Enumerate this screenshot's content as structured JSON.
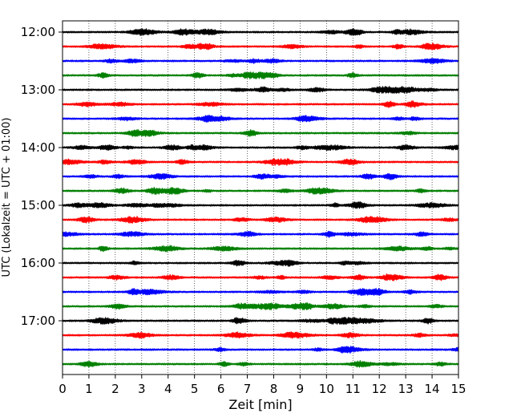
{
  "chart_data": {
    "type": "line",
    "title": "",
    "xlabel": "Zeit  [min]",
    "ylabel": "UTC (Lokalzeit = UTC + 01:00)",
    "xlim": [
      0,
      15
    ],
    "x_ticks": [
      "0",
      "1",
      "2",
      "3",
      "4",
      "5",
      "6",
      "7",
      "8",
      "9",
      "10",
      "11",
      "12",
      "13",
      "14",
      "15"
    ],
    "y_tick_labels": [
      "12:00",
      "13:00",
      "14:00",
      "15:00",
      "16:00",
      "17:00"
    ],
    "grid": "vertical dotted",
    "trace_interval_minutes": 15,
    "trace_colors": [
      "#000000",
      "#ff0000",
      "#0000ff",
      "#007f00"
    ],
    "series": [
      {
        "start": "12:00",
        "color": "#000000"
      },
      {
        "start": "12:15",
        "color": "#ff0000"
      },
      {
        "start": "12:30",
        "color": "#0000ff"
      },
      {
        "start": "12:45",
        "color": "#007f00"
      },
      {
        "start": "13:00",
        "color": "#000000"
      },
      {
        "start": "13:15",
        "color": "#ff0000"
      },
      {
        "start": "13:30",
        "color": "#0000ff"
      },
      {
        "start": "13:45",
        "color": "#007f00"
      },
      {
        "start": "14:00",
        "color": "#000000"
      },
      {
        "start": "14:15",
        "color": "#ff0000"
      },
      {
        "start": "14:30",
        "color": "#0000ff"
      },
      {
        "start": "14:45",
        "color": "#007f00"
      },
      {
        "start": "15:00",
        "color": "#000000"
      },
      {
        "start": "15:15",
        "color": "#ff0000"
      },
      {
        "start": "15:30",
        "color": "#0000ff"
      },
      {
        "start": "15:45",
        "color": "#007f00"
      },
      {
        "start": "16:00",
        "color": "#000000"
      },
      {
        "start": "16:15",
        "color": "#ff0000"
      },
      {
        "start": "16:30",
        "color": "#0000ff"
      },
      {
        "start": "16:45",
        "color": "#007f00"
      },
      {
        "start": "17:00",
        "color": "#000000"
      },
      {
        "start": "17:15",
        "color": "#ff0000"
      },
      {
        "start": "17:30",
        "color": "#0000ff"
      },
      {
        "start": "17:45",
        "color": "#007f00"
      }
    ]
  }
}
